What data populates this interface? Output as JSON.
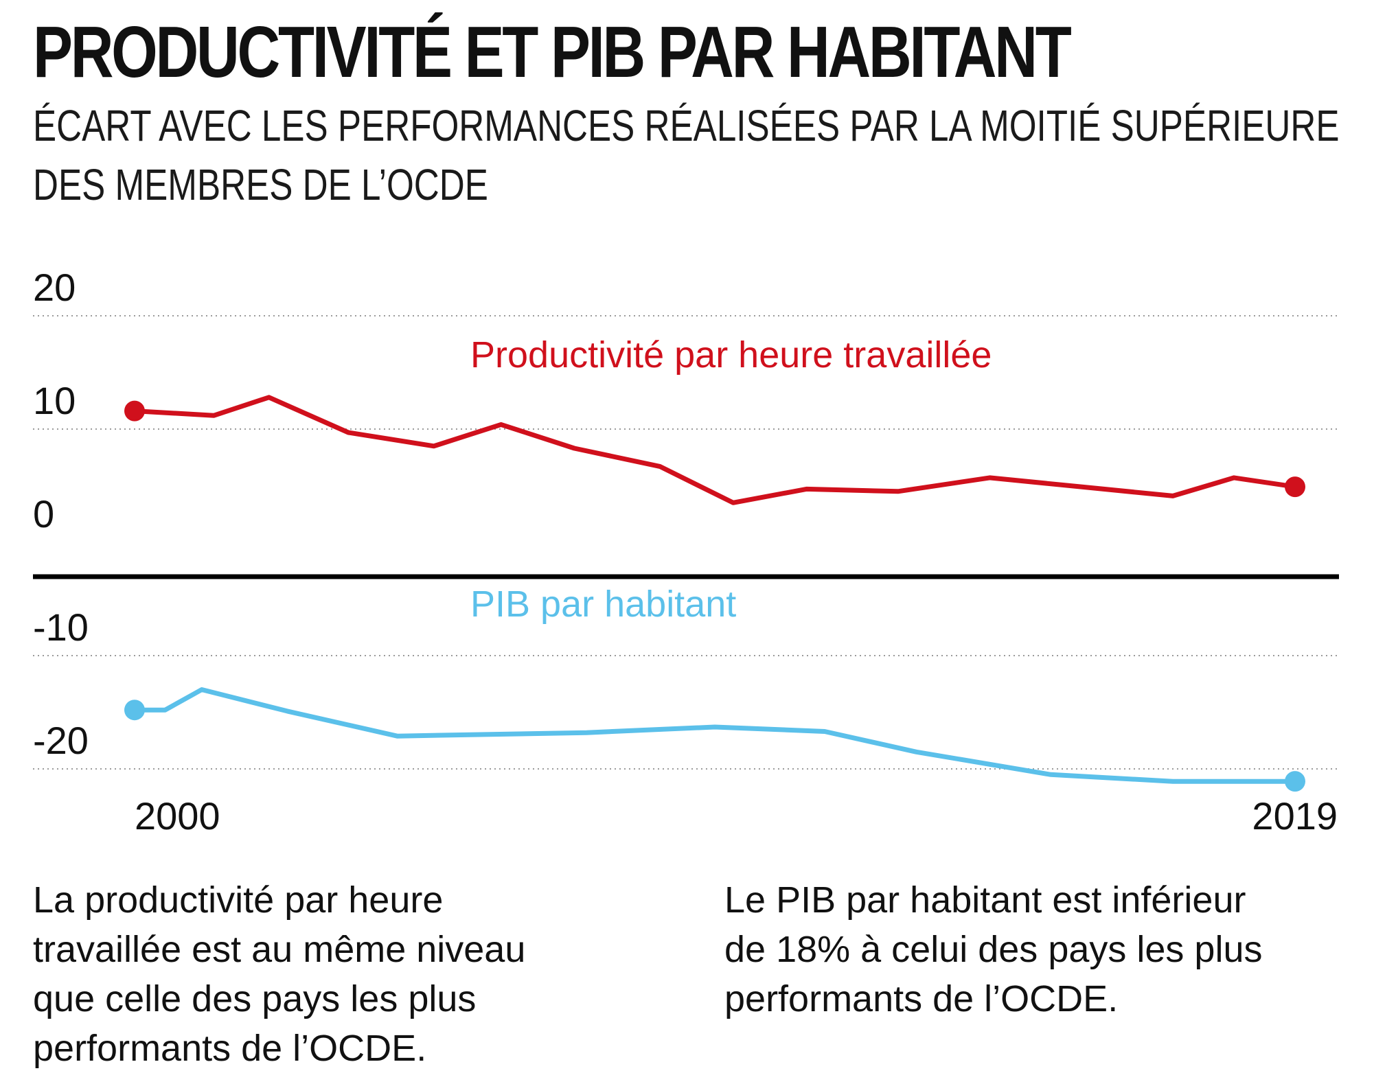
{
  "title": "PRODUCTIVITÉ ET PIB PAR HABITANT",
  "subtitle": {
    "line1": "ÉCART AVEC LES PERFORMANCES RÉALISÉES PAR LA MOITIÉ SUPÉRIEURE",
    "line2": "DES MEMBRES DE L’OCDE"
  },
  "colors": {
    "productivity": "#d0101c",
    "gdp": "#5bc0ea",
    "axis": "#000000",
    "grid": "#9a9a9a"
  },
  "chart_data": {
    "type": "line",
    "title": "PRODUCTIVITÉ ET PIB PAR HABITANT",
    "ylim": [
      -23,
      22
    ],
    "yticks": [
      20,
      10,
      0,
      -10,
      -20
    ],
    "ytick_labels": [
      "20",
      "10",
      "0",
      "-10",
      "-20"
    ],
    "xlim": [
      2000,
      2019
    ],
    "xtick_labels": [
      {
        "value": 2000,
        "label": "2000"
      },
      {
        "value": 2019,
        "label": "2019"
      }
    ],
    "grid": true,
    "zero_line": true,
    "series": [
      {
        "name": "Productivité par heure travaillée",
        "color": "#d0101c",
        "x": [
          2000,
          2001.3,
          2002.2,
          2003.5,
          2004.9,
          2006,
          2007.2,
          2008.6,
          2009.8,
          2011,
          2012.5,
          2014,
          2015.5,
          2017,
          2018,
          2019
        ],
        "values": [
          11.6,
          11.2,
          12.8,
          9.7,
          8.5,
          10.4,
          8.3,
          6.7,
          3.5,
          4.7,
          4.5,
          5.7,
          4.9,
          4.1,
          5.7,
          4.9
        ]
      },
      {
        "name": "PIB par habitant",
        "color": "#5bc0ea",
        "x": [
          2000,
          2000.5,
          2001.1,
          2002.5,
          2004.3,
          2007.4,
          2009.5,
          2011.3,
          2012.8,
          2015,
          2017,
          2019
        ],
        "values": [
          -14.8,
          -14.8,
          -13.0,
          -14.9,
          -17.1,
          -16.8,
          -16.3,
          -16.7,
          -18.5,
          -20.5,
          -21.1,
          -21.1
        ]
      }
    ]
  },
  "notes": {
    "left": [
      "La productivité par heure",
      "travaillée est au même niveau",
      "que celle des pays les plus",
      "performants de l’OCDE."
    ],
    "right": [
      "Le PIB par habitant est inférieur",
      "de 18% à celui des pays les plus",
      "performants de l’OCDE."
    ]
  }
}
